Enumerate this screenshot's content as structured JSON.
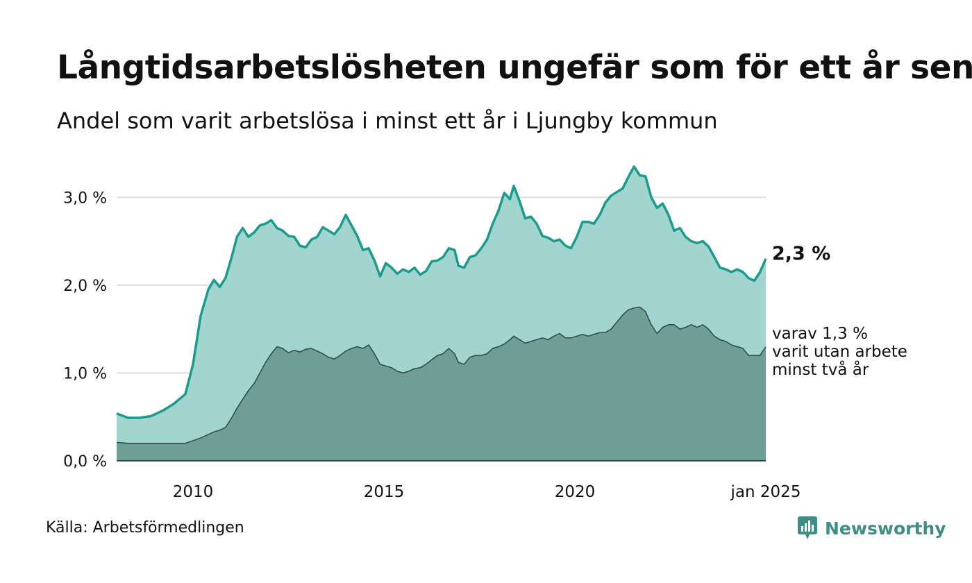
{
  "title": "Långtidsarbetslösheten ungefär som för ett år sen",
  "subtitle": "Andel som varit arbetslösa i minst ett år i Ljungby kommun",
  "source": "Källa: Arbetsförmedlingen",
  "brand": "Newsworthy",
  "annotations": {
    "latest_total": "2,3 %",
    "latest_sub_lines": [
      "varav 1,3 %",
      "varit utan arbete",
      "minst två år"
    ]
  },
  "colors": {
    "total_line": "#1a9b8b",
    "total_fill": "#a2d5cf",
    "sub_fill": "#6f9e96",
    "sub_line": "#2c4a44",
    "grid": "#dddddd",
    "brand": "#3f8e86"
  },
  "chart_data": {
    "type": "area",
    "x_unit": "year (monthly data)",
    "xlim": [
      2008.0,
      2025.0
    ],
    "ylim": [
      0,
      3.5
    ],
    "y_ticks": [
      {
        "value": 0,
        "label": "0,0 %"
      },
      {
        "value": 1,
        "label": "1,0 %"
      },
      {
        "value": 2,
        "label": "2,0 %"
      },
      {
        "value": 3,
        "label": "3,0 %"
      }
    ],
    "x_ticks": [
      {
        "value": 2010.0,
        "label": "2010"
      },
      {
        "value": 2015.0,
        "label": "2015"
      },
      {
        "value": 2020.0,
        "label": "2020"
      },
      {
        "value": 2025.0,
        "label": "jan 2025"
      }
    ],
    "grid": true,
    "series": [
      {
        "key": "total",
        "points": [
          [
            2008.0,
            0.54
          ],
          [
            2008.3,
            0.49
          ],
          [
            2008.6,
            0.49
          ],
          [
            2008.9,
            0.51
          ],
          [
            2009.2,
            0.57
          ],
          [
            2009.5,
            0.65
          ],
          [
            2009.8,
            0.76
          ],
          [
            2010.0,
            1.1
          ],
          [
            2010.2,
            1.65
          ],
          [
            2010.4,
            1.95
          ],
          [
            2010.55,
            2.06
          ],
          [
            2010.7,
            1.98
          ],
          [
            2010.85,
            2.08
          ],
          [
            2011.0,
            2.3
          ],
          [
            2011.15,
            2.55
          ],
          [
            2011.3,
            2.65
          ],
          [
            2011.45,
            2.55
          ],
          [
            2011.6,
            2.6
          ],
          [
            2011.75,
            2.68
          ],
          [
            2011.9,
            2.7
          ],
          [
            2012.05,
            2.74
          ],
          [
            2012.2,
            2.65
          ],
          [
            2012.35,
            2.62
          ],
          [
            2012.5,
            2.56
          ],
          [
            2012.65,
            2.55
          ],
          [
            2012.8,
            2.45
          ],
          [
            2012.95,
            2.43
          ],
          [
            2013.1,
            2.52
          ],
          [
            2013.25,
            2.55
          ],
          [
            2013.4,
            2.66
          ],
          [
            2013.55,
            2.62
          ],
          [
            2013.7,
            2.58
          ],
          [
            2013.85,
            2.66
          ],
          [
            2014.0,
            2.8
          ],
          [
            2014.15,
            2.68
          ],
          [
            2014.3,
            2.56
          ],
          [
            2014.45,
            2.4
          ],
          [
            2014.6,
            2.42
          ],
          [
            2014.75,
            2.28
          ],
          [
            2014.9,
            2.1
          ],
          [
            2015.05,
            2.25
          ],
          [
            2015.2,
            2.2
          ],
          [
            2015.35,
            2.13
          ],
          [
            2015.5,
            2.18
          ],
          [
            2015.65,
            2.15
          ],
          [
            2015.8,
            2.2
          ],
          [
            2015.95,
            2.12
          ],
          [
            2016.1,
            2.16
          ],
          [
            2016.25,
            2.27
          ],
          [
            2016.4,
            2.28
          ],
          [
            2016.55,
            2.32
          ],
          [
            2016.7,
            2.42
          ],
          [
            2016.85,
            2.4
          ],
          [
            2016.95,
            2.22
          ],
          [
            2017.1,
            2.2
          ],
          [
            2017.25,
            2.32
          ],
          [
            2017.4,
            2.34
          ],
          [
            2017.55,
            2.42
          ],
          [
            2017.7,
            2.52
          ],
          [
            2017.85,
            2.7
          ],
          [
            2018.0,
            2.85
          ],
          [
            2018.15,
            3.05
          ],
          [
            2018.3,
            2.98
          ],
          [
            2018.4,
            3.13
          ],
          [
            2018.55,
            2.96
          ],
          [
            2018.7,
            2.76
          ],
          [
            2018.85,
            2.78
          ],
          [
            2019.0,
            2.7
          ],
          [
            2019.15,
            2.56
          ],
          [
            2019.3,
            2.54
          ],
          [
            2019.45,
            2.5
          ],
          [
            2019.6,
            2.52
          ],
          [
            2019.75,
            2.45
          ],
          [
            2019.9,
            2.42
          ],
          [
            2020.05,
            2.55
          ],
          [
            2020.2,
            2.72
          ],
          [
            2020.35,
            2.72
          ],
          [
            2020.5,
            2.7
          ],
          [
            2020.65,
            2.8
          ],
          [
            2020.8,
            2.94
          ],
          [
            2020.95,
            3.02
          ],
          [
            2021.1,
            3.06
          ],
          [
            2021.25,
            3.1
          ],
          [
            2021.4,
            3.23
          ],
          [
            2021.55,
            3.35
          ],
          [
            2021.7,
            3.25
          ],
          [
            2021.85,
            3.24
          ],
          [
            2022.0,
            3.0
          ],
          [
            2022.15,
            2.88
          ],
          [
            2022.3,
            2.93
          ],
          [
            2022.45,
            2.8
          ],
          [
            2022.6,
            2.62
          ],
          [
            2022.75,
            2.65
          ],
          [
            2022.9,
            2.55
          ],
          [
            2023.05,
            2.5
          ],
          [
            2023.2,
            2.48
          ],
          [
            2023.35,
            2.5
          ],
          [
            2023.5,
            2.44
          ],
          [
            2023.65,
            2.32
          ],
          [
            2023.8,
            2.2
          ],
          [
            2023.95,
            2.18
          ],
          [
            2024.1,
            2.15
          ],
          [
            2024.25,
            2.18
          ],
          [
            2024.4,
            2.15
          ],
          [
            2024.55,
            2.08
          ],
          [
            2024.7,
            2.05
          ],
          [
            2024.85,
            2.15
          ],
          [
            2025.0,
            2.3
          ]
        ]
      },
      {
        "key": "minst_tva_ar",
        "points": [
          [
            2008.0,
            0.21
          ],
          [
            2008.3,
            0.2
          ],
          [
            2008.6,
            0.2
          ],
          [
            2008.9,
            0.2
          ],
          [
            2009.2,
            0.2
          ],
          [
            2009.5,
            0.2
          ],
          [
            2009.8,
            0.2
          ],
          [
            2010.0,
            0.23
          ],
          [
            2010.2,
            0.26
          ],
          [
            2010.4,
            0.3
          ],
          [
            2010.55,
            0.33
          ],
          [
            2010.7,
            0.35
          ],
          [
            2010.85,
            0.38
          ],
          [
            2011.0,
            0.48
          ],
          [
            2011.15,
            0.6
          ],
          [
            2011.3,
            0.7
          ],
          [
            2011.45,
            0.8
          ],
          [
            2011.6,
            0.88
          ],
          [
            2011.75,
            1.0
          ],
          [
            2011.9,
            1.12
          ],
          [
            2012.05,
            1.22
          ],
          [
            2012.2,
            1.3
          ],
          [
            2012.35,
            1.28
          ],
          [
            2012.5,
            1.23
          ],
          [
            2012.65,
            1.26
          ],
          [
            2012.8,
            1.24
          ],
          [
            2012.95,
            1.27
          ],
          [
            2013.1,
            1.28
          ],
          [
            2013.25,
            1.25
          ],
          [
            2013.4,
            1.22
          ],
          [
            2013.55,
            1.18
          ],
          [
            2013.7,
            1.16
          ],
          [
            2013.85,
            1.2
          ],
          [
            2014.0,
            1.25
          ],
          [
            2014.15,
            1.28
          ],
          [
            2014.3,
            1.3
          ],
          [
            2014.45,
            1.28
          ],
          [
            2014.6,
            1.32
          ],
          [
            2014.75,
            1.22
          ],
          [
            2014.9,
            1.1
          ],
          [
            2015.05,
            1.08
          ],
          [
            2015.2,
            1.06
          ],
          [
            2015.35,
            1.02
          ],
          [
            2015.5,
            1.0
          ],
          [
            2015.65,
            1.02
          ],
          [
            2015.8,
            1.05
          ],
          [
            2015.95,
            1.06
          ],
          [
            2016.1,
            1.1
          ],
          [
            2016.25,
            1.15
          ],
          [
            2016.4,
            1.2
          ],
          [
            2016.55,
            1.22
          ],
          [
            2016.7,
            1.28
          ],
          [
            2016.85,
            1.22
          ],
          [
            2016.95,
            1.12
          ],
          [
            2017.1,
            1.1
          ],
          [
            2017.25,
            1.18
          ],
          [
            2017.4,
            1.2
          ],
          [
            2017.55,
            1.2
          ],
          [
            2017.7,
            1.22
          ],
          [
            2017.85,
            1.28
          ],
          [
            2018.0,
            1.3
          ],
          [
            2018.15,
            1.33
          ],
          [
            2018.3,
            1.38
          ],
          [
            2018.4,
            1.42
          ],
          [
            2018.55,
            1.38
          ],
          [
            2018.7,
            1.34
          ],
          [
            2018.85,
            1.36
          ],
          [
            2019.0,
            1.38
          ],
          [
            2019.15,
            1.4
          ],
          [
            2019.3,
            1.38
          ],
          [
            2019.45,
            1.42
          ],
          [
            2019.6,
            1.45
          ],
          [
            2019.75,
            1.4
          ],
          [
            2019.9,
            1.4
          ],
          [
            2020.05,
            1.42
          ],
          [
            2020.2,
            1.44
          ],
          [
            2020.35,
            1.42
          ],
          [
            2020.5,
            1.44
          ],
          [
            2020.65,
            1.46
          ],
          [
            2020.8,
            1.46
          ],
          [
            2020.95,
            1.5
          ],
          [
            2021.1,
            1.58
          ],
          [
            2021.25,
            1.66
          ],
          [
            2021.4,
            1.72
          ],
          [
            2021.55,
            1.74
          ],
          [
            2021.7,
            1.75
          ],
          [
            2021.85,
            1.7
          ],
          [
            2022.0,
            1.55
          ],
          [
            2022.15,
            1.45
          ],
          [
            2022.3,
            1.52
          ],
          [
            2022.45,
            1.55
          ],
          [
            2022.6,
            1.55
          ],
          [
            2022.75,
            1.5
          ],
          [
            2022.9,
            1.52
          ],
          [
            2023.05,
            1.55
          ],
          [
            2023.2,
            1.52
          ],
          [
            2023.35,
            1.55
          ],
          [
            2023.5,
            1.5
          ],
          [
            2023.65,
            1.42
          ],
          [
            2023.8,
            1.38
          ],
          [
            2023.95,
            1.36
          ],
          [
            2024.1,
            1.32
          ],
          [
            2024.25,
            1.3
          ],
          [
            2024.4,
            1.28
          ],
          [
            2024.55,
            1.2
          ],
          [
            2024.7,
            1.2
          ],
          [
            2024.85,
            1.2
          ],
          [
            2025.0,
            1.3
          ]
        ]
      }
    ]
  }
}
